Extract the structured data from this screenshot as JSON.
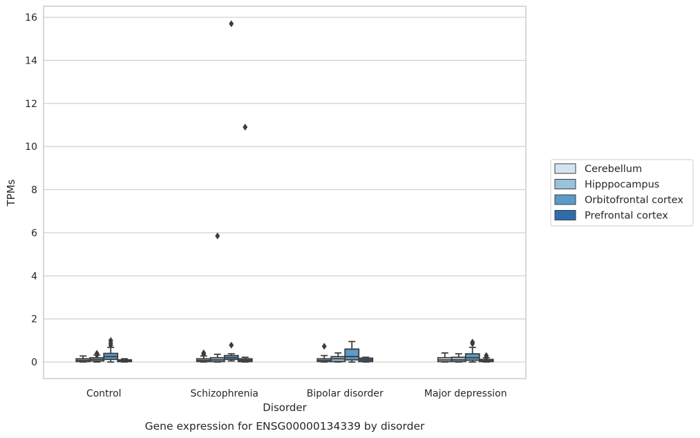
{
  "chart_data": {
    "type": "box",
    "categories": [
      "Control",
      "Schizophrenia",
      "Bipolar disorder",
      "Major depression"
    ],
    "xlabel": "Disorder",
    "ylabel": "TPMs",
    "caption": "Gene expression for ENSG00000134339 by disorder",
    "ylim": [
      -0.8,
      16.5
    ],
    "yticks": [
      0,
      2,
      4,
      6,
      8,
      10,
      12,
      14,
      16
    ],
    "grid": "horizontal",
    "legend_position": "right",
    "series": [
      {
        "name": "Cerebellum",
        "color": "#d5e3f0",
        "boxes": [
          {
            "whislo": 0.0,
            "q1": 0.02,
            "med": 0.08,
            "q3": 0.15,
            "whishi": 0.28,
            "fliers": []
          },
          {
            "whislo": 0.0,
            "q1": 0.02,
            "med": 0.08,
            "q3": 0.15,
            "whishi": 0.28,
            "fliers": [
              0.42,
              0.36
            ]
          },
          {
            "whislo": 0.0,
            "q1": 0.02,
            "med": 0.08,
            "q3": 0.15,
            "whishi": 0.3,
            "fliers": [
              0.73
            ]
          },
          {
            "whislo": 0.0,
            "q1": 0.02,
            "med": 0.1,
            "q3": 0.2,
            "whishi": 0.42,
            "fliers": []
          }
        ]
      },
      {
        "name": "Hipppocampus",
        "color": "#9ac1dd",
        "boxes": [
          {
            "whislo": 0.0,
            "q1": 0.05,
            "med": 0.12,
            "q3": 0.2,
            "whishi": 0.33,
            "fliers": [
              0.4,
              0.32
            ]
          },
          {
            "whislo": 0.0,
            "q1": 0.02,
            "med": 0.1,
            "q3": 0.2,
            "whishi": 0.36,
            "fliers": [
              5.85
            ]
          },
          {
            "whislo": 0.0,
            "q1": 0.02,
            "med": 0.15,
            "q3": 0.25,
            "whishi": 0.42,
            "fliers": []
          },
          {
            "whislo": 0.0,
            "q1": 0.02,
            "med": 0.1,
            "q3": 0.22,
            "whishi": 0.38,
            "fliers": []
          }
        ]
      },
      {
        "name": "Orbitofrontal cortex",
        "color": "#5b9bc8",
        "boxes": [
          {
            "whislo": 0.0,
            "q1": 0.12,
            "med": 0.25,
            "q3": 0.4,
            "whishi": 0.68,
            "fliers": [
              1.0,
              0.88,
              0.78
            ]
          },
          {
            "whislo": 0.05,
            "q1": 0.12,
            "med": 0.2,
            "q3": 0.3,
            "whishi": 0.38,
            "fliers": [
              15.7,
              0.78
            ]
          },
          {
            "whislo": 0.0,
            "q1": 0.1,
            "med": 0.25,
            "q3": 0.6,
            "whishi": 0.95,
            "fliers": []
          },
          {
            "whislo": 0.0,
            "q1": 0.08,
            "med": 0.2,
            "q3": 0.38,
            "whishi": 0.68,
            "fliers": [
              0.92,
              0.85
            ]
          }
        ]
      },
      {
        "name": "Prefrontal cortex",
        "color": "#2e6daa",
        "boxes": [
          {
            "whislo": 0.0,
            "q1": 0.02,
            "med": 0.06,
            "q3": 0.1,
            "whishi": 0.15,
            "fliers": []
          },
          {
            "whislo": 0.0,
            "q1": 0.02,
            "med": 0.08,
            "q3": 0.15,
            "whishi": 0.22,
            "fliers": [
              10.9
            ]
          },
          {
            "whislo": 0.0,
            "q1": 0.02,
            "med": 0.1,
            "q3": 0.18,
            "whishi": 0.22,
            "fliers": []
          },
          {
            "whislo": 0.0,
            "q1": 0.02,
            "med": 0.06,
            "q3": 0.12,
            "whishi": 0.2,
            "fliers": [
              0.3,
              0.22
            ]
          }
        ]
      }
    ]
  }
}
